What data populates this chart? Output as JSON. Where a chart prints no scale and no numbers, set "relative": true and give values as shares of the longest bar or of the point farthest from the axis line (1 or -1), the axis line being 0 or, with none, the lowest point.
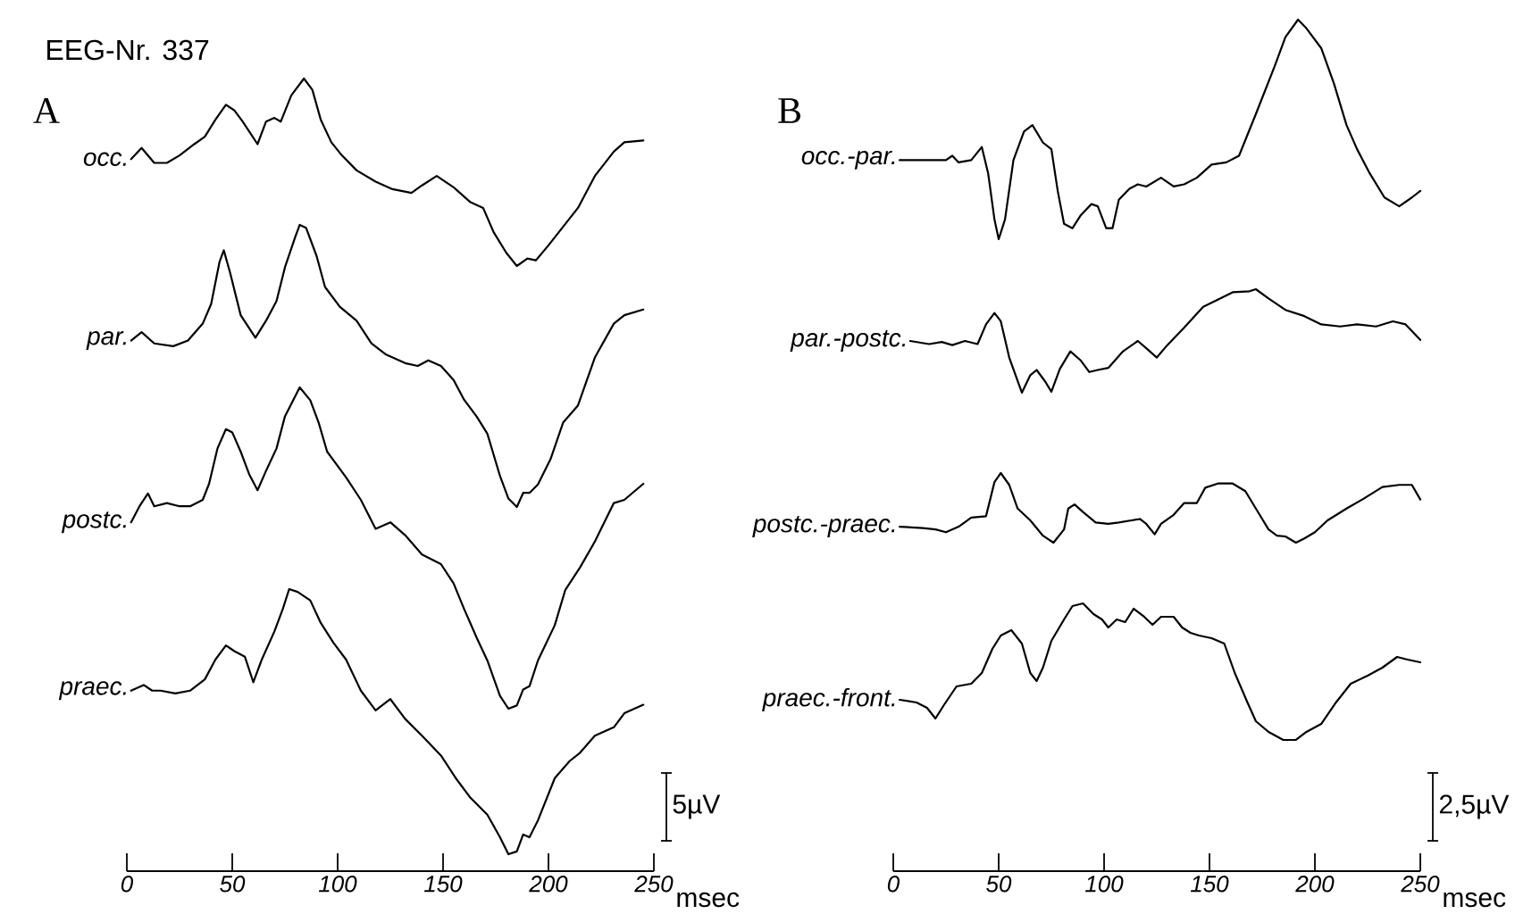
{
  "chart_data": [
    {
      "type": "line",
      "relative": true,
      "title": "A",
      "annotations": [
        "EEG-Nr. 337"
      ],
      "xlim": [
        0,
        250
      ],
      "tick_labels": false,
      "series": [
        {
          "name": "occ.",
          "color": "#000000",
          "x": [
            2,
            7,
            13,
            19,
            25,
            32,
            37,
            42,
            47,
            51,
            55,
            62,
            66,
            70,
            73,
            78,
            84,
            88,
            92,
            97,
            102,
            109,
            118,
            126,
            135,
            140,
            147,
            155,
            163,
            169,
            174,
            180,
            185,
            190,
            194,
            200,
            207,
            214,
            222,
            231,
            236,
            245
          ],
          "values": [
            0.57,
            0.63,
            0.55,
            0.55,
            0.59,
            0.65,
            0.69,
            0.78,
            0.86,
            0.83,
            0.77,
            0.65,
            0.77,
            0.79,
            0.77,
            0.91,
            1.0,
            0.94,
            0.78,
            0.66,
            0.59,
            0.51,
            0.45,
            0.41,
            0.39,
            0.43,
            0.48,
            0.42,
            0.34,
            0.31,
            0.18,
            0.07,
            0.0,
            0.04,
            0.03,
            0.11,
            0.21,
            0.31,
            0.48,
            0.61,
            0.66,
            0.67
          ]
        }
      ]
    },
    {
      "type": "line",
      "relative": true,
      "xlim": [
        0,
        250
      ],
      "tick_labels": false,
      "series": [
        {
          "name": "par.",
          "color": "#000000",
          "x": [
            2,
            7,
            13,
            22,
            29,
            36,
            40,
            44,
            46,
            49,
            54,
            61,
            66,
            71,
            75,
            80,
            82,
            85,
            90,
            94,
            101,
            109,
            116,
            123,
            132,
            138,
            143,
            149,
            155,
            160,
            166,
            171,
            177,
            181,
            185,
            188,
            191,
            195,
            201,
            207,
            214,
            222,
            231,
            236,
            245
          ],
          "values": [
            0.59,
            0.62,
            0.58,
            0.57,
            0.59,
            0.65,
            0.72,
            0.87,
            0.91,
            0.83,
            0.68,
            0.6,
            0.66,
            0.73,
            0.85,
            0.96,
            1.0,
            0.99,
            0.89,
            0.78,
            0.71,
            0.66,
            0.58,
            0.54,
            0.51,
            0.5,
            0.52,
            0.5,
            0.45,
            0.38,
            0.32,
            0.26,
            0.11,
            0.03,
            0.0,
            0.05,
            0.05,
            0.08,
            0.17,
            0.3,
            0.36,
            0.53,
            0.65,
            0.68,
            0.7
          ]
        }
      ]
    },
    {
      "type": "line",
      "relative": true,
      "xlim": [
        0,
        250
      ],
      "tick_labels": false,
      "series": [
        {
          "name": "postc.",
          "color": "#000000",
          "x": [
            2,
            6,
            10,
            13,
            19,
            25,
            30,
            36,
            39,
            43,
            47,
            50,
            54,
            58,
            62,
            66,
            71,
            75,
            82,
            87,
            91,
            95,
            104,
            111,
            118,
            125,
            132,
            140,
            149,
            155,
            160,
            166,
            171,
            177,
            181,
            185,
            188,
            191,
            195,
            203,
            208,
            215,
            222,
            231,
            236,
            245
          ],
          "values": [
            0.58,
            0.63,
            0.67,
            0.63,
            0.64,
            0.63,
            0.63,
            0.65,
            0.7,
            0.81,
            0.87,
            0.86,
            0.8,
            0.73,
            0.68,
            0.74,
            0.81,
            0.91,
            1.0,
            0.96,
            0.89,
            0.8,
            0.72,
            0.65,
            0.56,
            0.58,
            0.54,
            0.48,
            0.45,
            0.39,
            0.31,
            0.22,
            0.15,
            0.04,
            0.0,
            0.01,
            0.06,
            0.07,
            0.15,
            0.26,
            0.37,
            0.44,
            0.52,
            0.64,
            0.65,
            0.7
          ]
        }
      ]
    },
    {
      "type": "line",
      "relative": true,
      "annotations": [
        "5µV"
      ],
      "xlim": [
        0,
        250
      ],
      "xticks": [
        0,
        50,
        100,
        150,
        200,
        250
      ],
      "xlabel": "msec",
      "tick_labels": "x",
      "series": [
        {
          "name": "praec.",
          "color": "#000000",
          "x": [
            2,
            8,
            12,
            16,
            23,
            30,
            37,
            42,
            47,
            51,
            56,
            60,
            64,
            70,
            74,
            77,
            81,
            87,
            92,
            98,
            104,
            111,
            118,
            125,
            132,
            140,
            149,
            156,
            163,
            171,
            177,
            181,
            185,
            188,
            191,
            195,
            203,
            210,
            215,
            222,
            231,
            236,
            245
          ],
          "values": [
            0.64,
            0.66,
            0.64,
            0.64,
            0.63,
            0.64,
            0.68,
            0.75,
            0.8,
            0.78,
            0.76,
            0.67,
            0.75,
            0.85,
            0.93,
            1.0,
            0.99,
            0.96,
            0.88,
            0.81,
            0.75,
            0.64,
            0.57,
            0.61,
            0.54,
            0.48,
            0.41,
            0.33,
            0.26,
            0.2,
            0.12,
            0.06,
            0.07,
            0.13,
            0.12,
            0.18,
            0.33,
            0.39,
            0.42,
            0.48,
            0.51,
            0.56,
            0.59
          ]
        }
      ]
    },
    {
      "type": "line",
      "relative": true,
      "title": "B",
      "xlim": [
        0,
        250
      ],
      "tick_labels": false,
      "series": [
        {
          "name": "occ.-par.",
          "color": "#000000",
          "x": [
            3,
            20,
            25,
            28,
            31,
            37,
            42,
            45,
            48,
            50,
            53,
            57,
            62,
            66,
            71,
            75,
            78,
            81,
            85,
            89,
            94,
            97,
            101,
            104,
            107,
            112,
            116,
            120,
            127,
            133,
            138,
            144,
            151,
            158,
            164,
            172,
            181,
            186,
            192,
            196,
            203,
            209,
            215,
            220,
            226,
            233,
            240,
            246,
            250
          ],
          "values": [
            0.36,
            0.36,
            0.36,
            0.38,
            0.35,
            0.36,
            0.42,
            0.3,
            0.09,
            0.0,
            0.09,
            0.36,
            0.49,
            0.52,
            0.44,
            0.41,
            0.22,
            0.07,
            0.05,
            0.11,
            0.16,
            0.15,
            0.05,
            0.05,
            0.18,
            0.23,
            0.25,
            0.24,
            0.28,
            0.24,
            0.25,
            0.28,
            0.34,
            0.35,
            0.38,
            0.57,
            0.79,
            0.92,
            1.0,
            0.96,
            0.87,
            0.71,
            0.52,
            0.41,
            0.3,
            0.19,
            0.15,
            0.19,
            0.22
          ]
        }
      ]
    },
    {
      "type": "line",
      "relative": true,
      "xlim": [
        0,
        250
      ],
      "tick_labels": false,
      "series": [
        {
          "name": "par.-postc.",
          "color": "#000000",
          "x": [
            8,
            17,
            23,
            28,
            34,
            40,
            44,
            48,
            51,
            55,
            61,
            65,
            68,
            72,
            75,
            79,
            84,
            89,
            93,
            97,
            102,
            109,
            116,
            120,
            125,
            130,
            138,
            147,
            155,
            161,
            169,
            172,
            178,
            186,
            195,
            203,
            212,
            220,
            229,
            237,
            243,
            250
          ],
          "values": [
            0.5,
            0.47,
            0.49,
            0.46,
            0.5,
            0.47,
            0.66,
            0.77,
            0.69,
            0.34,
            0.0,
            0.17,
            0.22,
            0.11,
            0.01,
            0.23,
            0.4,
            0.31,
            0.2,
            0.22,
            0.24,
            0.4,
            0.5,
            0.43,
            0.34,
            0.46,
            0.63,
            0.83,
            0.91,
            0.97,
            0.98,
            1.0,
            0.91,
            0.8,
            0.74,
            0.66,
            0.64,
            0.66,
            0.64,
            0.69,
            0.66,
            0.51
          ]
        }
      ]
    },
    {
      "type": "line",
      "relative": true,
      "xlim": [
        0,
        250
      ],
      "tick_labels": false,
      "series": [
        {
          "name": "postc.-praec.",
          "color": "#000000",
          "x": [
            3,
            14,
            20,
            25,
            31,
            37,
            44,
            48,
            51,
            55,
            59,
            65,
            71,
            76,
            81,
            83,
            86,
            90,
            96,
            102,
            107,
            113,
            117,
            120,
            124,
            127,
            133,
            138,
            144,
            148,
            154,
            161,
            167,
            172,
            178,
            182,
            186,
            191,
            195,
            200,
            206,
            215,
            223,
            232,
            240,
            246,
            250
          ],
          "values": [
            0.23,
            0.21,
            0.19,
            0.15,
            0.23,
            0.36,
            0.38,
            0.87,
            1.0,
            0.83,
            0.49,
            0.32,
            0.1,
            0.0,
            0.19,
            0.49,
            0.55,
            0.44,
            0.29,
            0.27,
            0.29,
            0.32,
            0.34,
            0.27,
            0.12,
            0.27,
            0.4,
            0.57,
            0.57,
            0.79,
            0.85,
            0.85,
            0.74,
            0.49,
            0.19,
            0.1,
            0.09,
            0.0,
            0.06,
            0.15,
            0.32,
            0.49,
            0.63,
            0.8,
            0.83,
            0.83,
            0.62
          ]
        }
      ]
    },
    {
      "type": "line",
      "relative": true,
      "annotations": [
        "2,5µV"
      ],
      "xlim": [
        0,
        250
      ],
      "xticks": [
        0,
        50,
        100,
        150,
        200,
        250
      ],
      "xlabel": "msec",
      "tick_labels": "x",
      "series": [
        {
          "name": "praec.-front.",
          "color": "#000000",
          "x": [
            3,
            11,
            16,
            20,
            24,
            30,
            37,
            42,
            47,
            51,
            56,
            61,
            65,
            68,
            71,
            75,
            81,
            85,
            90,
            95,
            99,
            102,
            106,
            110,
            114,
            119,
            123,
            127,
            133,
            137,
            141,
            145,
            151,
            157,
            162,
            168,
            172,
            178,
            185,
            191,
            196,
            203,
            210,
            217,
            225,
            232,
            239,
            244,
            250
          ],
          "values": [
            0.64,
            0.63,
            0.61,
            0.57,
            0.62,
            0.69,
            0.7,
            0.74,
            0.83,
            0.88,
            0.9,
            0.85,
            0.74,
            0.71,
            0.76,
            0.86,
            0.94,
            0.99,
            1.0,
            0.96,
            0.94,
            0.91,
            0.94,
            0.93,
            0.98,
            0.95,
            0.92,
            0.95,
            0.95,
            0.91,
            0.89,
            0.88,
            0.87,
            0.85,
            0.74,
            0.63,
            0.56,
            0.52,
            0.49,
            0.49,
            0.52,
            0.55,
            0.63,
            0.7,
            0.73,
            0.76,
            0.8,
            0.79,
            0.78
          ]
        }
      ]
    }
  ]
}
